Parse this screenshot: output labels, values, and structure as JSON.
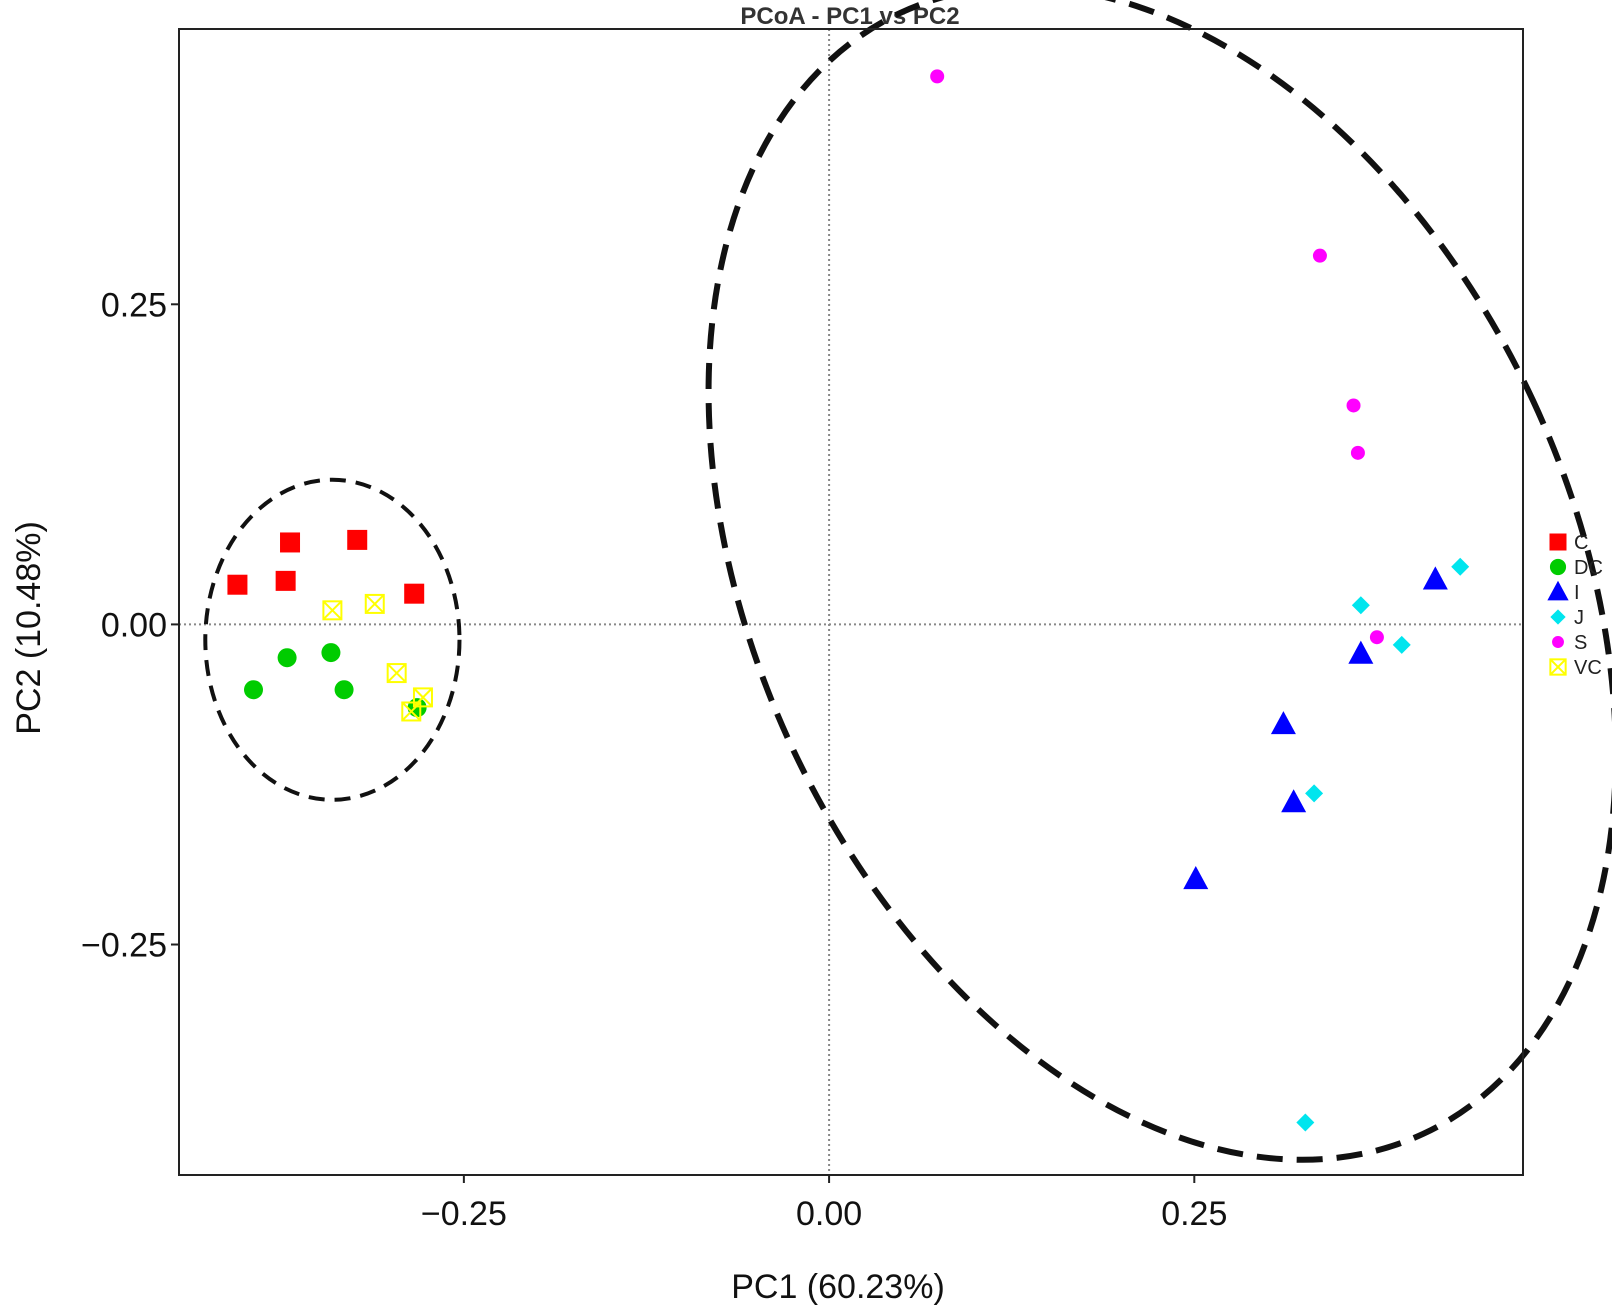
{
  "chart_data": {
    "type": "scatter",
    "title": "PCoA - PC1 vs PC2",
    "xlabel": "PC1 (60.23%)",
    "ylabel": "PC2 (10.48%)",
    "xlim": [
      -0.445,
      0.475
    ],
    "ylim": [
      -0.43,
      0.465
    ],
    "xticks": [
      -0.25,
      0.0,
      0.25
    ],
    "yticks": [
      -0.25,
      0.0,
      0.25
    ],
    "xtick_labels": [
      "−0.25",
      "0.00",
      "0.25"
    ],
    "ytick_labels": [
      "−0.25",
      "0.00",
      "0.25"
    ],
    "grid": false,
    "reference_lines": {
      "x": 0,
      "y": 0,
      "style": "dotted"
    },
    "legend_position": "right",
    "series": [
      {
        "name": "C",
        "marker": "square",
        "color": "#ff0000",
        "points": [
          [
            -0.405,
            0.031
          ],
          [
            -0.372,
            0.034
          ],
          [
            -0.369,
            0.064
          ],
          [
            -0.323,
            0.066
          ],
          [
            -0.284,
            0.024
          ]
        ]
      },
      {
        "name": "DC",
        "marker": "circle",
        "color": "#00cc00",
        "points": [
          [
            -0.394,
            -0.051
          ],
          [
            -0.371,
            -0.026
          ],
          [
            -0.341,
            -0.022
          ],
          [
            -0.332,
            -0.051
          ],
          [
            -0.282,
            -0.065
          ]
        ]
      },
      {
        "name": "I",
        "marker": "triangle",
        "color": "#0000ff",
        "points": [
          [
            0.415,
            0.035
          ],
          [
            0.364,
            -0.023
          ],
          [
            0.311,
            -0.078
          ],
          [
            0.318,
            -0.139
          ],
          [
            0.251,
            -0.199
          ]
        ]
      },
      {
        "name": "J",
        "marker": "diamond",
        "color": "#00e5ee",
        "points": [
          [
            0.432,
            0.045
          ],
          [
            0.364,
            0.015
          ],
          [
            0.392,
            -0.016
          ],
          [
            0.332,
            -0.132
          ],
          [
            0.326,
            -0.389
          ]
        ]
      },
      {
        "name": "S",
        "marker": "dot",
        "color": "#ff00ff",
        "points": [
          [
            0.074,
            0.428
          ],
          [
            0.336,
            0.288
          ],
          [
            0.359,
            0.171
          ],
          [
            0.362,
            0.134
          ],
          [
            0.375,
            -0.01
          ]
        ]
      },
      {
        "name": "VC",
        "marker": "square-x",
        "color": "#ffff00",
        "points": [
          [
            -0.34,
            0.011
          ],
          [
            -0.311,
            0.016
          ],
          [
            -0.296,
            -0.038
          ],
          [
            -0.278,
            -0.057
          ],
          [
            -0.286,
            -0.068
          ]
        ]
      }
    ],
    "ellipses": [
      {
        "cx": -0.34,
        "cy": -0.012,
        "rx": 0.087,
        "ry": 0.125,
        "angle": 0
      },
      {
        "cx": 0.228,
        "cy": 0.04,
        "rx": 0.28,
        "ry": 0.483,
        "angle": -25
      }
    ]
  }
}
